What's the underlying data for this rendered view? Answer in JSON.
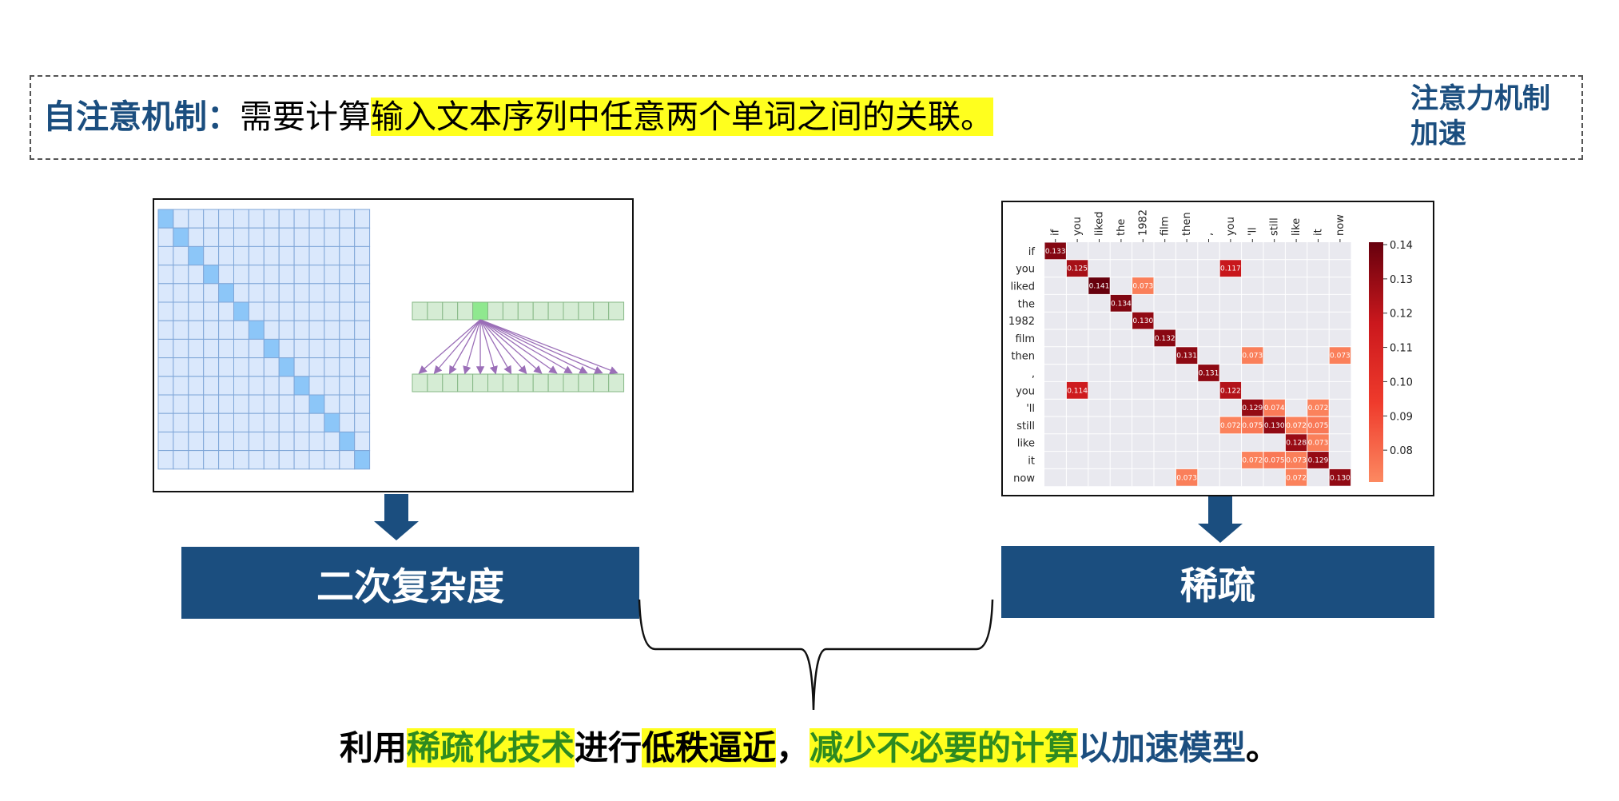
{
  "header": {
    "label": "自注意机制",
    "colon": "：",
    "text_plain": "需要计算",
    "text_highlight": "输入文本序列中任意两个单词之间的关联。",
    "corner_line1": "注意力机制",
    "corner_line2": "加速"
  },
  "boxes": {
    "left_label": "二次复杂度",
    "right_label": "稀疏"
  },
  "conclusion": {
    "p1": "利用",
    "p2": "稀疏化技术",
    "p3": "进行",
    "p4": "低秩逼近",
    "p5": "，",
    "p6": "减少不必要的计算",
    "p7": "以加速模型",
    "p8": "。"
  },
  "colors": {
    "accent": "#1b4e7f",
    "highlight": "#ffff1e",
    "green_text": "#2e8b20",
    "grid_fill": "#dae8fc",
    "grid_diag": "#8cc6f8"
  },
  "chart_data": {
    "type": "heatmap",
    "tokens_x": [
      "if",
      "you",
      "liked",
      "the",
      "1982",
      "film",
      "then",
      ",",
      "you",
      "'ll",
      "still",
      "like",
      "it",
      "now"
    ],
    "tokens_y": [
      "if",
      "you",
      "liked",
      "the",
      "1982",
      "film",
      "then",
      ",",
      "you",
      "'ll",
      "still",
      "like",
      "it",
      "now"
    ],
    "cells": [
      {
        "r": 0,
        "c": 0,
        "v": 0.133
      },
      {
        "r": 1,
        "c": 1,
        "v": 0.125
      },
      {
        "r": 1,
        "c": 8,
        "v": 0.117
      },
      {
        "r": 2,
        "c": 2,
        "v": 0.141
      },
      {
        "r": 2,
        "c": 4,
        "v": 0.073
      },
      {
        "r": 3,
        "c": 3,
        "v": 0.134
      },
      {
        "r": 4,
        "c": 4,
        "v": 0.13
      },
      {
        "r": 5,
        "c": 5,
        "v": 0.132
      },
      {
        "r": 6,
        "c": 6,
        "v": 0.131
      },
      {
        "r": 6,
        "c": 9,
        "v": 0.073
      },
      {
        "r": 6,
        "c": 13,
        "v": 0.073
      },
      {
        "r": 7,
        "c": 7,
        "v": 0.131
      },
      {
        "r": 8,
        "c": 1,
        "v": 0.114
      },
      {
        "r": 8,
        "c": 8,
        "v": 0.122
      },
      {
        "r": 9,
        "c": 9,
        "v": 0.129
      },
      {
        "r": 9,
        "c": 10,
        "v": 0.074
      },
      {
        "r": 9,
        "c": 12,
        "v": 0.072
      },
      {
        "r": 10,
        "c": 8,
        "v": 0.072
      },
      {
        "r": 10,
        "c": 9,
        "v": 0.075
      },
      {
        "r": 10,
        "c": 10,
        "v": 0.13
      },
      {
        "r": 10,
        "c": 11,
        "v": 0.072
      },
      {
        "r": 10,
        "c": 12,
        "v": 0.075
      },
      {
        "r": 11,
        "c": 11,
        "v": 0.128
      },
      {
        "r": 11,
        "c": 12,
        "v": 0.073
      },
      {
        "r": 12,
        "c": 9,
        "v": 0.072
      },
      {
        "r": 12,
        "c": 10,
        "v": 0.075
      },
      {
        "r": 12,
        "c": 11,
        "v": 0.073
      },
      {
        "r": 12,
        "c": 12,
        "v": 0.129
      },
      {
        "r": 13,
        "c": 6,
        "v": 0.073
      },
      {
        "r": 13,
        "c": 11,
        "v": 0.072
      },
      {
        "r": 13,
        "c": 13,
        "v": 0.13
      }
    ],
    "colorbar_ticks": [
      "0.14",
      "0.13",
      "0.12",
      "0.11",
      "0.10",
      "0.09",
      "0.08"
    ],
    "colorbar_range": [
      0.07,
      0.14
    ]
  }
}
